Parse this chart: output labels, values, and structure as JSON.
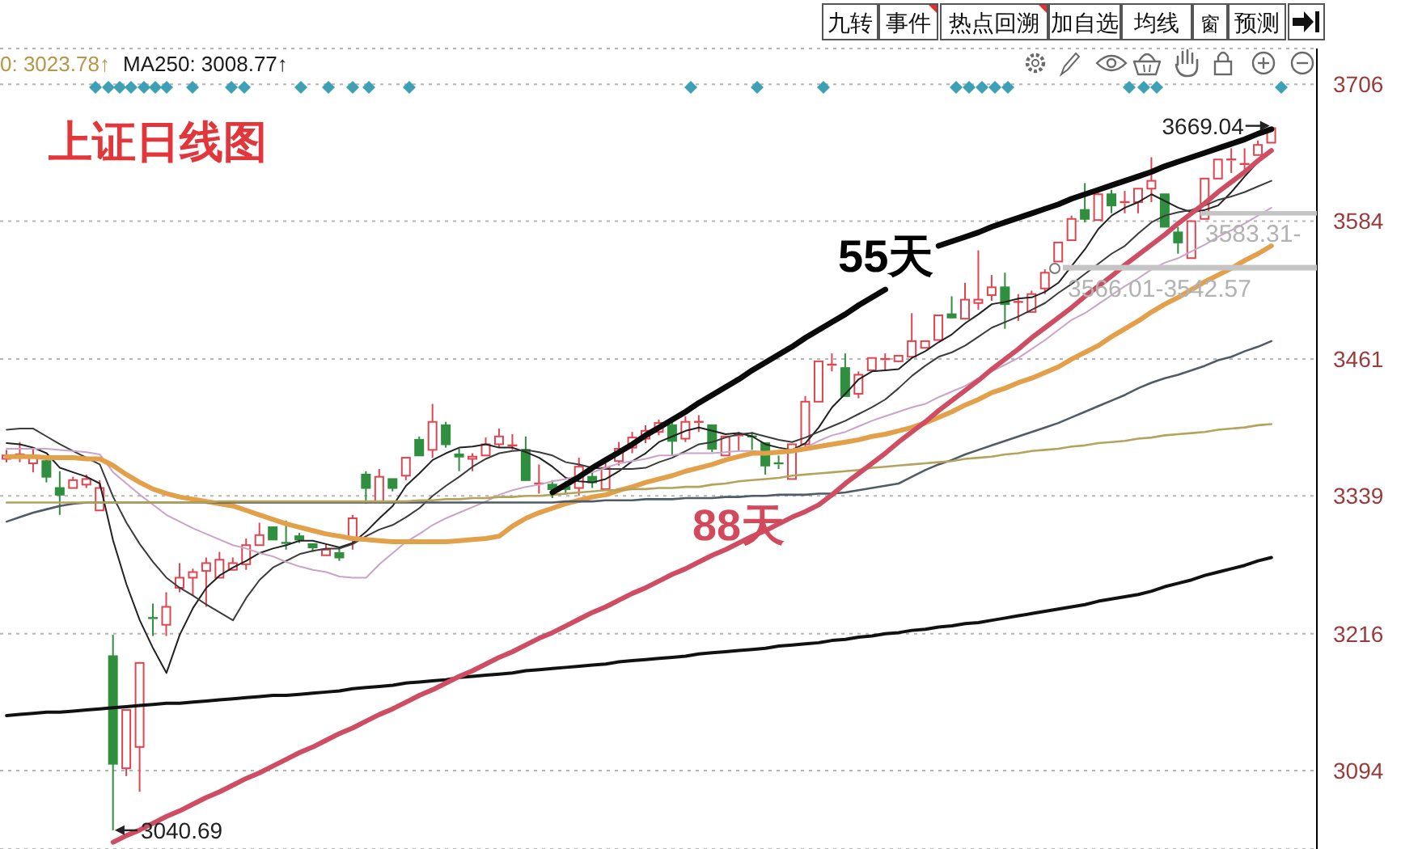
{
  "chart_data": {
    "type": "candlestick",
    "title": "上证日线图",
    "categories": [
      null,
      null,
      null,
      null,
      null,
      null,
      null,
      null,
      null,
      null,
      null,
      null,
      null,
      null,
      null,
      null,
      null,
      null,
      null,
      null,
      null,
      null,
      null,
      null,
      null,
      null,
      null,
      null,
      null,
      null,
      null,
      null,
      null,
      null,
      null,
      null,
      null,
      null,
      null,
      null,
      null,
      null,
      null,
      null,
      null,
      null,
      null,
      null,
      null,
      null,
      null,
      null,
      null,
      null,
      null,
      null,
      null,
      null,
      null,
      null,
      null,
      null,
      null,
      null,
      null,
      null,
      null,
      null,
      null,
      null,
      null,
      null,
      null,
      null,
      null,
      null,
      null,
      null,
      null,
      null,
      null,
      null,
      null,
      null,
      null,
      null,
      null,
      null,
      null,
      null,
      null,
      null,
      null,
      null,
      null,
      null
    ],
    "ohlc": [
      [
        3372,
        3380,
        3369,
        3375
      ],
      [
        3374,
        3387,
        3369,
        3376
      ],
      [
        3368,
        3382,
        3360,
        3375
      ],
      [
        3370,
        3373,
        3351,
        3356
      ],
      [
        3346,
        3361,
        3322,
        3340
      ],
      [
        3346,
        3356,
        3344,
        3353
      ],
      [
        3349,
        3358,
        3346,
        3354
      ],
      [
        3326,
        3353,
        3325,
        3346
      ],
      [
        3196,
        3215,
        3040.69,
        3100
      ],
      [
        3096,
        3149,
        3089,
        3148
      ],
      [
        3115,
        3190,
        3075,
        3190
      ],
      [
        3230,
        3243,
        3214,
        3229
      ],
      [
        3224,
        3253,
        3214,
        3240
      ],
      [
        3257,
        3279,
        3253,
        3266
      ],
      [
        3266,
        3274,
        3250,
        3271
      ],
      [
        3272,
        3284,
        3240,
        3279
      ],
      [
        3266,
        3289,
        3265,
        3282
      ],
      [
        3273,
        3284,
        3271,
        3279
      ],
      [
        3278,
        3301,
        3273,
        3295
      ],
      [
        3295,
        3315,
        3293,
        3304
      ],
      [
        3311,
        3313,
        3298,
        3300
      ],
      [
        3297,
        3317,
        3291,
        3296
      ],
      [
        3303,
        3306,
        3297,
        3300
      ],
      [
        3296,
        3298,
        3289,
        3293
      ],
      [
        3286,
        3296,
        3284,
        3291
      ],
      [
        3288,
        3293,
        3281,
        3284
      ],
      [
        3300,
        3322,
        3291,
        3319
      ],
      [
        3358,
        3361,
        3332,
        3346
      ],
      [
        3334,
        3363,
        3332,
        3356
      ],
      [
        3354,
        3356,
        3343,
        3346
      ],
      [
        3357,
        3375,
        3353,
        3373
      ],
      [
        3389,
        3392,
        3373,
        3375
      ],
      [
        3380,
        3421,
        3373,
        3405
      ],
      [
        3402,
        3405,
        3382,
        3385
      ],
      [
        3376,
        3381,
        3361,
        3374
      ],
      [
        3372,
        3377,
        3361,
        3374
      ],
      [
        3375,
        3391,
        3373,
        3385
      ],
      [
        3385,
        3399,
        3382,
        3392
      ],
      [
        3384,
        3394,
        3380,
        3384
      ],
      [
        3380,
        3392,
        3351,
        3353
      ],
      [
        3349,
        3367,
        3341,
        3350
      ],
      [
        3349,
        3353,
        3337,
        3345
      ],
      [
        3347,
        3352,
        3340,
        3345
      ],
      [
        3346,
        3373,
        3339,
        3365
      ],
      [
        3356,
        3361,
        3346,
        3351
      ],
      [
        3345,
        3368,
        3343,
        3364
      ],
      [
        3370,
        3387,
        3366,
        3381
      ],
      [
        3382,
        3396,
        3377,
        3391
      ],
      [
        3390,
        3402,
        3386,
        3397
      ],
      [
        3396,
        3407,
        3393,
        3404
      ],
      [
        3402,
        3406,
        3375,
        3388
      ],
      [
        3390,
        3410,
        3387,
        3405
      ],
      [
        3404,
        3411,
        3396,
        3405
      ],
      [
        3402,
        3404,
        3378,
        3381
      ],
      [
        3375,
        3394,
        3374,
        3392
      ],
      [
        3392,
        3396,
        3379,
        3393
      ],
      [
        3392,
        3396,
        3380,
        3391
      ],
      [
        3386,
        3388,
        3358,
        3366
      ],
      [
        3368,
        3375,
        3363,
        3367
      ],
      [
        3354,
        3387,
        3352,
        3385
      ],
      [
        3385,
        3428,
        3382,
        3423
      ],
      [
        3423,
        3460,
        3422,
        3459
      ],
      [
        3455,
        3466,
        3450,
        3456
      ],
      [
        3453,
        3466,
        3427,
        3428
      ],
      [
        3430,
        3450,
        3426,
        3447
      ],
      [
        3451,
        3463,
        3449,
        3462
      ],
      [
        3460,
        3466,
        3451,
        3461
      ],
      [
        3459,
        3466,
        3457,
        3464
      ],
      [
        3463,
        3502,
        3462,
        3477
      ],
      [
        3471,
        3478,
        3469,
        3477
      ],
      [
        3478,
        3502,
        3476,
        3500
      ],
      [
        3501,
        3517,
        3497,
        3498
      ],
      [
        3497,
        3529,
        3495,
        3514
      ],
      [
        3511,
        3558,
        3505,
        3514
      ],
      [
        3518,
        3536,
        3513,
        3525
      ],
      [
        3525,
        3538,
        3488,
        3510
      ],
      [
        3512,
        3519,
        3495,
        3512
      ],
      [
        3503,
        3522,
        3502,
        3519
      ],
      [
        3524,
        3541,
        3519,
        3538
      ],
      [
        3548,
        3567,
        3546,
        3565
      ],
      [
        3567,
        3589,
        3565,
        3586
      ],
      [
        3594,
        3618,
        3583,
        3586
      ],
      [
        3585,
        3611,
        3583,
        3608
      ],
      [
        3608,
        3612,
        3591,
        3598
      ],
      [
        3600,
        3611,
        3591,
        3601
      ],
      [
        3601,
        3615,
        3591,
        3613
      ],
      [
        3613,
        3641,
        3601,
        3620
      ],
      [
        3608,
        3609,
        3577,
        3579
      ],
      [
        3574,
        3579,
        3555,
        3565
      ],
      [
        3551,
        3586,
        3551,
        3584
      ],
      [
        3586,
        3623,
        3585,
        3622
      ],
      [
        3622,
        3641,
        3620,
        3639
      ],
      [
        3638,
        3649,
        3627,
        3639
      ],
      [
        3634,
        3649,
        3630,
        3635
      ],
      [
        3643,
        3656,
        3641,
        3652
      ],
      [
        3654,
        3669.04,
        3652,
        3667
      ]
    ],
    "colors": [
      "#e0454f",
      "#e0454f",
      "#e0454f",
      "#2f8f3f",
      "#2f8f3f",
      "#e0454f",
      "#e0454f",
      "#e0454f",
      "#2f8f3f",
      "#e0454f",
      "#e0454f",
      "#2f8f3f",
      "#e0454f",
      "#e0454f",
      "#e0454f",
      "#e0454f",
      "#e0454f",
      "#e0454f",
      "#e0454f",
      "#e0454f",
      "#2f8f3f",
      "#2f8f3f",
      "#2f8f3f",
      "#2f8f3f",
      "#e0454f",
      "#2f8f3f",
      "#e0454f",
      "#2f8f3f",
      "#e0454f",
      "#2f8f3f",
      "#e0454f",
      "#2f8f3f",
      "#e0454f",
      "#2f8f3f",
      "#2f8f3f",
      "#e0454f",
      "#e0454f",
      "#e0454f",
      "#e0454f",
      "#2f8f3f",
      "#e0454f",
      "#2f8f3f",
      "#2f8f3f",
      "#e0454f",
      "#2f8f3f",
      "#e0454f",
      "#e0454f",
      "#e0454f",
      "#e0454f",
      "#e0454f",
      "#2f8f3f",
      "#e0454f",
      "#e0454f",
      "#2f8f3f",
      "#e0454f",
      "#e0454f",
      "#2f8f3f",
      "#2f8f3f",
      "#2f8f3f",
      "#e0454f",
      "#e0454f",
      "#e0454f",
      "#e0454f",
      "#2f8f3f",
      "#e0454f",
      "#e0454f",
      "#e0454f",
      "#e0454f",
      "#e0454f",
      "#e0454f",
      "#e0454f",
      "#2f8f3f",
      "#e0454f",
      "#e0454f",
      "#e0454f",
      "#2f8f3f",
      "#e0454f",
      "#e0454f",
      "#e0454f",
      "#e0454f",
      "#e0454f",
      "#2f8f3f",
      "#e0454f",
      "#2f8f3f",
      "#e0454f",
      "#e0454f",
      "#e0454f",
      "#2f8f3f",
      "#2f8f3f",
      "#e0454f",
      "#e0454f",
      "#e0454f",
      "#e0454f",
      "#e0454f",
      "#e0454f",
      "#e0454f"
    ],
    "series": [
      {
        "type": "line",
        "color": "#222222",
        "values": [
          3386,
          3385,
          3382,
          3377,
          3364,
          3360,
          3356,
          3350,
          3299,
          3260,
          3228,
          3203,
          3181,
          3215,
          3239,
          3257,
          3268,
          3275,
          3281,
          3288,
          3292,
          3295,
          3299,
          3299,
          3296,
          3293,
          3297,
          3307,
          3319,
          3330,
          3348,
          3359,
          3371,
          3377,
          3382,
          3383,
          3385,
          3382,
          3382,
          3378,
          3373,
          3365,
          3355,
          3352,
          3351,
          3354,
          3361,
          3370,
          3377,
          3387,
          3392,
          3397,
          3400,
          3397,
          3394,
          3395,
          3392,
          3385,
          3382,
          3380,
          3386,
          3400,
          3418,
          3430,
          3443,
          3450,
          3451,
          3452,
          3462,
          3468,
          3476,
          3483,
          3493,
          3501,
          3510,
          3512,
          3515,
          3516,
          3521,
          3529,
          3544,
          3559,
          3577,
          3589,
          3596,
          3601,
          3608,
          3602,
          3596,
          3592,
          3594,
          3598,
          3610,
          3624,
          3637,
          3646
        ]
      },
      {
        "type": "line",
        "color": "#3c3c3c",
        "values": [
          3398,
          3399,
          3399,
          3392,
          3385,
          3379,
          3373,
          3367,
          3338,
          3315,
          3296,
          3280,
          3266,
          3257,
          3250,
          3242,
          3235,
          3228,
          3248,
          3264,
          3275,
          3281,
          3287,
          3290,
          3292,
          3292,
          3296,
          3303,
          3309,
          3313,
          3320,
          3328,
          3339,
          3348,
          3356,
          3365,
          3372,
          3377,
          3379,
          3380,
          3378,
          3375,
          3369,
          3367,
          3364,
          3363,
          3363,
          3363,
          3364,
          3369,
          3373,
          3379,
          3385,
          3387,
          3391,
          3394,
          3395,
          3392,
          3389,
          3387,
          3391,
          3396,
          3401,
          3406,
          3412,
          3418,
          3425,
          3435,
          3446,
          3455,
          3463,
          3467,
          3473,
          3481,
          3489,
          3494,
          3499,
          3505,
          3511,
          3520,
          3528,
          3537,
          3546,
          3555,
          3562,
          3573,
          3583,
          3589,
          3592,
          3594,
          3598,
          3603,
          3606,
          3610,
          3615,
          3620
        ]
      },
      {
        "type": "line",
        "color": "#c9a3c9",
        "values": [
          3381,
          3381,
          3381,
          3381,
          3380,
          3379,
          3378,
          3376,
          3360,
          3350,
          3340,
          3331,
          3322,
          3316,
          3310,
          3305,
          3300,
          3295,
          3292,
          3288,
          3285,
          3280,
          3276,
          3273,
          3271,
          3267,
          3266,
          3266,
          3278,
          3288,
          3298,
          3305,
          3313,
          3319,
          3324,
          3329,
          3334,
          3340,
          3344,
          3347,
          3349,
          3352,
          3354,
          3357,
          3360,
          3364,
          3368,
          3370,
          3372,
          3375,
          3375,
          3377,
          3377,
          3377,
          3378,
          3379,
          3379,
          3378,
          3377,
          3378,
          3382,
          3388,
          3393,
          3396,
          3401,
          3406,
          3410,
          3414,
          3418,
          3421,
          3427,
          3432,
          3437,
          3444,
          3450,
          3456,
          3462,
          3470,
          3478,
          3487,
          3496,
          3502,
          3510,
          3518,
          3526,
          3533,
          3541,
          3547,
          3551,
          3557,
          3563,
          3570,
          3576,
          3582,
          3589,
          3596
        ]
      },
      {
        "type": "line",
        "color": "#e2a04a",
        "values": [
          3374,
          3374,
          3374,
          3373,
          3373,
          3373,
          3372,
          3372,
          3366,
          3358,
          3351,
          3345,
          3341,
          3338,
          3336,
          3334,
          3332,
          3330,
          3326,
          3322,
          3318,
          3314,
          3311,
          3308,
          3305,
          3303,
          3301,
          3300,
          3299,
          3298,
          3298,
          3298,
          3298,
          3298,
          3299,
          3300,
          3301,
          3303,
          3312,
          3319,
          3324,
          3328,
          3332,
          3335,
          3338,
          3340,
          3344,
          3347,
          3351,
          3354,
          3357,
          3361,
          3364,
          3367,
          3371,
          3374,
          3377,
          3377,
          3378,
          3379,
          3381,
          3383,
          3385,
          3387,
          3389,
          3392,
          3394,
          3397,
          3400,
          3404,
          3409,
          3414,
          3420,
          3425,
          3431,
          3435,
          3440,
          3444,
          3449,
          3454,
          3461,
          3467,
          3473,
          3481,
          3488,
          3495,
          3503,
          3510,
          3516,
          3523,
          3530,
          3536,
          3542,
          3549,
          3555,
          3562
        ]
      },
      {
        "type": "line",
        "color": "#4f5b66",
        "values": [
          3316,
          3320,
          3324,
          3327,
          3330,
          3332,
          3333,
          3333,
          3333,
          3333,
          3333,
          3333,
          3333,
          3333,
          3333,
          3333,
          3333,
          3333,
          3333,
          3333,
          3333,
          3333,
          3333,
          3333,
          3333,
          3333,
          3333,
          3333,
          3333,
          3333,
          3333,
          3333,
          3333,
          3333,
          3333,
          3333,
          3333,
          3333,
          3333,
          3333,
          3333,
          3333,
          3334,
          3334,
          3334,
          3335,
          3335,
          3335,
          3336,
          3336,
          3336,
          3337,
          3337,
          3337,
          3338,
          3338,
          3339,
          3339,
          3340,
          3340,
          3340,
          3341,
          3341,
          3342,
          3344,
          3346,
          3348,
          3350,
          3356,
          3362,
          3367,
          3371,
          3376,
          3380,
          3384,
          3388,
          3392,
          3396,
          3400,
          3404,
          3409,
          3414,
          3419,
          3424,
          3429,
          3435,
          3440,
          3444,
          3447,
          3451,
          3455,
          3460,
          3463,
          3468,
          3472,
          3477
        ]
      },
      {
        "type": "line",
        "color": "#b5a35c",
        "values": [
          3333,
          3333,
          3333,
          3333,
          3333,
          3333,
          3333,
          3333,
          3333,
          3333,
          3333,
          3333,
          3333,
          3333,
          3333,
          3333,
          3334,
          3334,
          3334,
          3334,
          3334,
          3334,
          3334,
          3334,
          3334,
          3334,
          3334,
          3334,
          3334,
          3334,
          3334,
          3335,
          3335,
          3336,
          3336,
          3337,
          3337,
          3338,
          3338,
          3339,
          3339,
          3340,
          3341,
          3342,
          3343,
          3344,
          3344,
          3345,
          3345,
          3346,
          3346,
          3347,
          3347,
          3349,
          3350,
          3352,
          3353,
          3354,
          3355,
          3357,
          3358,
          3359,
          3360,
          3361,
          3362,
          3364,
          3365,
          3366,
          3367,
          3368,
          3369,
          3370,
          3372,
          3373,
          3374,
          3376,
          3377,
          3379,
          3380,
          3381,
          3383,
          3384,
          3386,
          3387,
          3388,
          3390,
          3391,
          3393,
          3394,
          3395,
          3396,
          3398,
          3399,
          3400,
          3402,
          3403
        ]
      },
      {
        "type": "line",
        "color": "#111111",
        "values": [
          3143,
          3144,
          3145,
          3146,
          3146,
          3147,
          3148,
          3149,
          3150,
          3151,
          3152,
          3153,
          3154,
          3154,
          3155,
          3156,
          3157,
          3158,
          3159,
          3160,
          3161,
          3161,
          3162,
          3163,
          3164,
          3165,
          3167,
          3168,
          3169,
          3170,
          3172,
          3173,
          3174,
          3175,
          3177,
          3178,
          3179,
          3180,
          3181,
          3183,
          3184,
          3185,
          3186,
          3187,
          3188,
          3189,
          3191,
          3192,
          3193,
          3194,
          3195,
          3196,
          3198,
          3199,
          3200,
          3201,
          3202,
          3203,
          3205,
          3206,
          3207,
          3208,
          3210,
          3211,
          3213,
          3214,
          3216,
          3217,
          3219,
          3220,
          3222,
          3223,
          3225,
          3226,
          3228,
          3230,
          3232,
          3234,
          3236,
          3238,
          3240,
          3242,
          3245,
          3247,
          3249,
          3251,
          3254,
          3258,
          3261,
          3264,
          3268,
          3271,
          3274,
          3277,
          3281,
          3284
        ]
      },
      {
        "type": "line",
        "color": "#0a0a0a",
        "values": [
          null,
          null,
          null,
          null,
          null,
          null,
          null,
          null,
          null,
          null,
          null,
          null,
          null,
          null,
          null,
          null,
          null,
          null,
          null,
          null,
          null,
          null,
          null,
          null,
          null,
          null,
          null,
          null,
          null,
          null,
          null,
          null,
          null,
          null,
          null,
          null,
          null,
          null,
          null,
          null,
          null,
          3342,
          3349,
          3356,
          3364,
          3371,
          3378,
          3385,
          3393,
          3400,
          3407,
          3414,
          3422,
          3429,
          3436,
          3443,
          3451,
          3458,
          3465,
          3472,
          3480,
          3487,
          3494,
          3501,
          3509,
          3516,
          3523,
          null,
          null,
          null,
          null,
          null,
          null,
          null,
          null,
          null,
          null,
          null,
          null,
          null,
          null,
          null,
          null,
          null,
          null,
          null,
          null,
          null,
          null,
          null,
          null,
          null,
          null,
          null,
          null,
          null
        ]
      },
      {
        "type": "line",
        "color": "#0a0a0a",
        "values": [
          null,
          null,
          null,
          null,
          null,
          null,
          null,
          null,
          null,
          null,
          null,
          null,
          null,
          null,
          null,
          null,
          null,
          null,
          null,
          null,
          null,
          null,
          null,
          null,
          null,
          null,
          null,
          null,
          null,
          null,
          null,
          null,
          null,
          null,
          null,
          null,
          null,
          null,
          null,
          null,
          null,
          null,
          null,
          null,
          null,
          null,
          null,
          null,
          null,
          null,
          null,
          null,
          null,
          null,
          null,
          null,
          null,
          null,
          null,
          null,
          null,
          null,
          null,
          null,
          null,
          null,
          null,
          null,
          null,
          null,
          3562,
          3566,
          3570,
          3574,
          3579,
          3583,
          3587,
          3591,
          3595,
          3599,
          3604,
          3608,
          3612,
          3616,
          3620,
          3624,
          3628,
          3633,
          3637,
          3641,
          3645,
          3649,
          3653,
          3657,
          3662,
          3666
        ]
      },
      {
        "type": "line",
        "color": "#cf4d63",
        "values": [
          null,
          null,
          null,
          null,
          null,
          null,
          null,
          null,
          3030,
          3036,
          3041,
          3047,
          3053,
          3058,
          3064,
          3070,
          3075,
          3081,
          3087,
          3092,
          3098,
          3104,
          3110,
          3115,
          3121,
          3127,
          3132,
          3138,
          3144,
          3149,
          3155,
          3161,
          3166,
          3172,
          3178,
          3183,
          3189,
          3195,
          3200,
          3206,
          3212,
          3217,
          3223,
          3229,
          3235,
          3240,
          3246,
          3252,
          3257,
          3263,
          3269,
          3274,
          3280,
          3286,
          3291,
          3297,
          3303,
          3308,
          3314,
          3320,
          3325,
          3331,
          3340,
          3350,
          3359,
          3368,
          3377,
          3387,
          3396,
          3405,
          3415,
          3424,
          3433,
          3442,
          3452,
          3461,
          3470,
          3480,
          3489,
          3498,
          3507,
          3517,
          3526,
          3535,
          3545,
          3554,
          3563,
          3572,
          3582,
          3591,
          3600,
          3610,
          3619,
          3628,
          3638,
          3647
        ]
      }
    ],
    "ylim": [
      3024,
      3738
    ],
    "yticks": [
      3094,
      3216,
      3339,
      3461,
      3584,
      3706
    ],
    "grid": "y",
    "tick_labels": "y",
    "bands": [
      {
        "axis": "y",
        "from": 3589,
        "to": 3593,
        "label": "3583.31-",
        "color": "#c4c4c4"
      },
      {
        "axis": "y",
        "from": 3540,
        "to": 3545,
        "label": "3566.01-3542.57",
        "color": "#c4c4c4"
      }
    ],
    "annotations": [
      "55天",
      "88天",
      "0: 3023.78↑",
      "MA250: 3008.77↑",
      "3040.69",
      "3669.04",
      "九转",
      "事件",
      "热点回溯",
      "加自选",
      "均线",
      "窗",
      "预测"
    ]
  }
}
